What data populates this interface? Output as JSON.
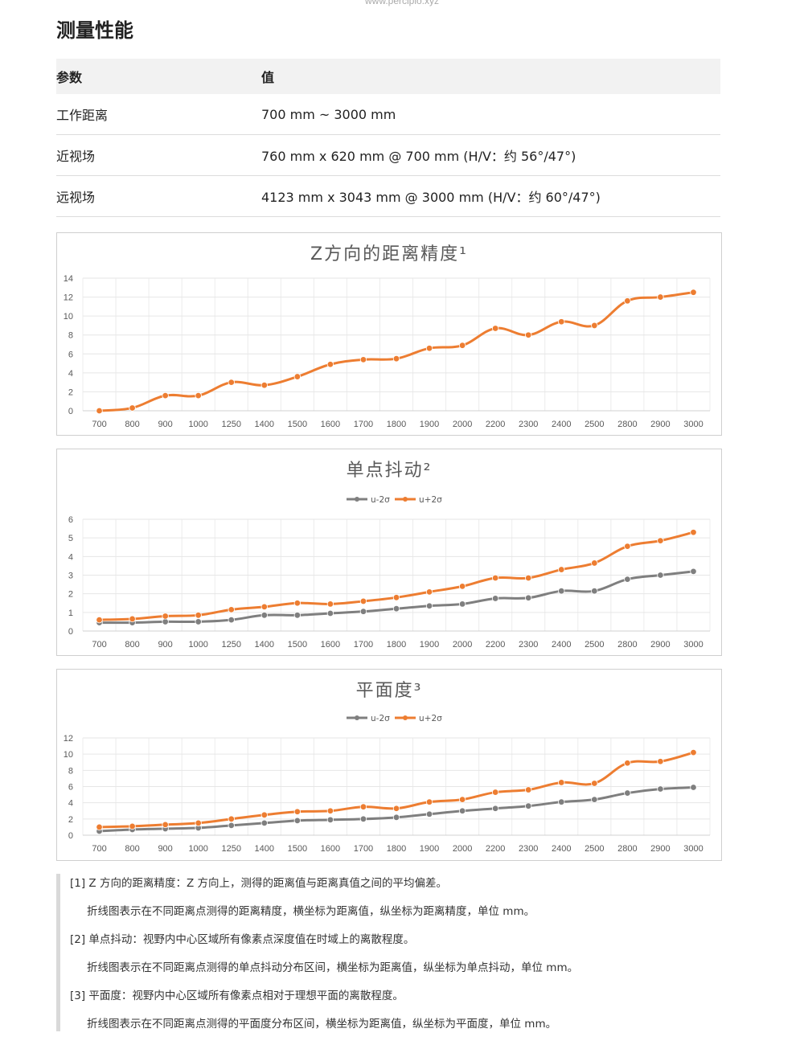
{
  "header": {
    "url": "www.percipio.xyz",
    "title": "测量性能"
  },
  "spec_table": {
    "headers": [
      "参数",
      "值"
    ],
    "rows": [
      {
        "param": "工作距离",
        "value": "700 mm ~ 3000 mm"
      },
      {
        "param": "近视场",
        "value": "760 mm x 620 mm @ 700 mm (H/V：约 56°/47°)"
      },
      {
        "param": "远视场",
        "value": "4123 mm x 3043 mm @ 3000 mm (H/V：约 60°/47°)"
      }
    ]
  },
  "chart_data": [
    {
      "type": "line",
      "title": "Z方向的距离精度¹",
      "categories": [
        "700",
        "800",
        "900",
        "1000",
        "1250",
        "1400",
        "1500",
        "1600",
        "1700",
        "1800",
        "1900",
        "2000",
        "2200",
        "2300",
        "2400",
        "2500",
        "2800",
        "2900",
        "3000"
      ],
      "series": [
        {
          "values": [
            0.0,
            0.3,
            1.6,
            1.6,
            3.0,
            2.7,
            3.6,
            4.9,
            5.4,
            5.5,
            6.6,
            6.9,
            8.7,
            8.0,
            9.4,
            9.0,
            11.6,
            12.0,
            12.5
          ],
          "color": "#ed7d31"
        }
      ],
      "ylim": [
        0,
        14
      ],
      "yticks": [
        0,
        2,
        4,
        6,
        8,
        10,
        12,
        14
      ],
      "grid": true,
      "legend": "none"
    },
    {
      "type": "line",
      "title": "单点抖动²",
      "categories": [
        "700",
        "800",
        "900",
        "1000",
        "1250",
        "1400",
        "1500",
        "1600",
        "1700",
        "1800",
        "1900",
        "2000",
        "2200",
        "2300",
        "2400",
        "2500",
        "2800",
        "2900",
        "3000"
      ],
      "series": [
        {
          "name": "u-2σ",
          "values": [
            0.45,
            0.45,
            0.5,
            0.5,
            0.6,
            0.85,
            0.85,
            0.95,
            1.05,
            1.2,
            1.35,
            1.45,
            1.75,
            1.78,
            2.15,
            2.15,
            2.78,
            3.0,
            3.2
          ],
          "color": "#7f7f7f"
        },
        {
          "name": "u+2σ",
          "values": [
            0.6,
            0.65,
            0.8,
            0.85,
            1.15,
            1.3,
            1.5,
            1.45,
            1.6,
            1.8,
            2.1,
            2.4,
            2.85,
            2.85,
            3.3,
            3.65,
            4.55,
            4.85,
            5.3
          ],
          "color": "#ed7d31"
        }
      ],
      "ylim": [
        0,
        6
      ],
      "yticks": [
        0,
        1,
        2,
        3,
        4,
        5,
        6
      ],
      "grid": true,
      "legend": "top-center"
    },
    {
      "type": "line",
      "title": "平面度³",
      "categories": [
        "700",
        "800",
        "900",
        "1000",
        "1250",
        "1400",
        "1500",
        "1600",
        "1700",
        "1800",
        "1900",
        "2000",
        "2200",
        "2300",
        "2400",
        "2500",
        "2800",
        "2900",
        "3000"
      ],
      "series": [
        {
          "name": "u-2σ",
          "values": [
            0.5,
            0.7,
            0.8,
            0.9,
            1.2,
            1.5,
            1.8,
            1.9,
            2.0,
            2.2,
            2.6,
            3.0,
            3.3,
            3.6,
            4.1,
            4.4,
            5.2,
            5.7,
            5.9
          ],
          "color": "#7f7f7f"
        },
        {
          "name": "u+2σ",
          "values": [
            1.0,
            1.1,
            1.3,
            1.5,
            2.0,
            2.5,
            2.9,
            3.0,
            3.5,
            3.3,
            4.1,
            4.4,
            5.3,
            5.6,
            6.5,
            6.4,
            8.9,
            9.1,
            10.2
          ],
          "color": "#ed7d31"
        }
      ],
      "ylim": [
        0,
        12
      ],
      "yticks": [
        0,
        2,
        4,
        6,
        8,
        10,
        12
      ],
      "grid": true,
      "legend": "top-center"
    }
  ],
  "notes": [
    {
      "title": "[1] Z 方向的距离精度：Z 方向上，测得的距离值与距离真值之间的平均偏差。",
      "body": "折线图表示在不同距离点测得的距离精度，横坐标为距离值，纵坐标为距离精度，单位 mm。"
    },
    {
      "title": "[2] 单点抖动：视野内中心区域所有像素点深度值在时域上的离散程度。",
      "body": "折线图表示在不同距离点测得的单点抖动分布区间，横坐标为距离值，纵坐标为单点抖动，单位 mm。"
    },
    {
      "title": "[3] 平面度：视野内中心区域所有像素点相对于理想平面的离散程度。",
      "body": "折线图表示在不同距离点测得的平面度分布区间，横坐标为距离值，纵坐标为平面度，单位 mm。"
    }
  ]
}
